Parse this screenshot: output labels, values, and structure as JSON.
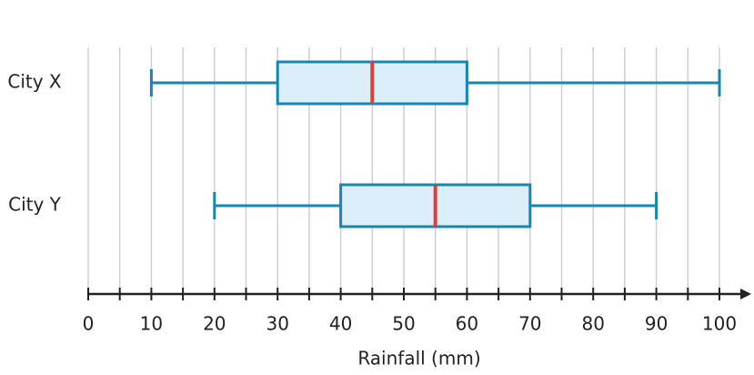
{
  "chart_data": {
    "type": "box",
    "orientation": "horizontal",
    "categories": [
      "City X",
      "City Y"
    ],
    "boxes": [
      {
        "min": 10,
        "q1": 30,
        "median": 45,
        "q3": 60,
        "max": 100
      },
      {
        "min": 20,
        "q1": 40,
        "median": 55,
        "q3": 70,
        "max": 90
      }
    ],
    "box_color": "#dbeef9",
    "line_color": "#1a85ad",
    "median_color": "#d9413f",
    "xlabel": "Rainfall (mm)",
    "xlim": [
      0,
      105
    ],
    "xticks": [
      0,
      10,
      20,
      30,
      40,
      50,
      60,
      70,
      80,
      90,
      100
    ],
    "xminor_ticks": [
      5,
      15,
      25,
      35,
      45,
      55,
      65,
      75,
      85,
      95
    ],
    "grid": true
  }
}
